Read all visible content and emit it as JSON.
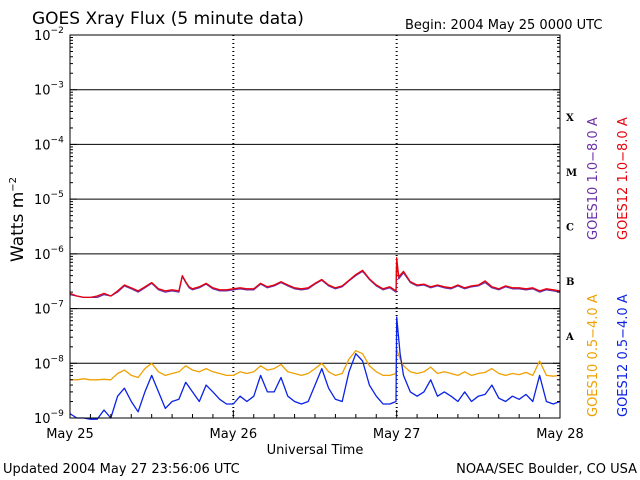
{
  "header": {
    "title": "GOES Xray Flux (5 minute data)",
    "begin": "Begin:  2004 May 25 0000 UTC"
  },
  "footer": {
    "updated": "Updated 2004 May 27 23:56:06 UTC",
    "credit": "NOAA/SEC Boulder, CO USA"
  },
  "colors": {
    "goes10_long": "#6a2fa8",
    "goes12_long": "#e8000b",
    "goes10_short": "#f0a000",
    "goes12_short": "#0a22e6"
  },
  "chart_data": {
    "type": "line",
    "title": "GOES Xray Flux (5 minute data)",
    "xlabel": "Universal Time",
    "ylabel": "Watts m-2",
    "ylabel_base": "Watts m",
    "ylabel_sup": "−2",
    "yscale": "log",
    "ylim": [
      1e-09,
      0.01
    ],
    "y_ticks": [
      {
        "value": 0.01,
        "base": "10",
        "exp": "−2"
      },
      {
        "value": 0.001,
        "base": "10",
        "exp": "−3"
      },
      {
        "value": 0.0001,
        "base": "10",
        "exp": "−4"
      },
      {
        "value": 1e-05,
        "base": "10",
        "exp": "−5"
      },
      {
        "value": 1e-06,
        "base": "10",
        "exp": "−6"
      },
      {
        "value": 1e-07,
        "base": "10",
        "exp": "−7"
      },
      {
        "value": 1e-08,
        "base": "10",
        "exp": "−8"
      },
      {
        "value": 1e-09,
        "base": "10",
        "exp": "−9"
      }
    ],
    "x_unit": "hours from 2004 May 25 0000 UTC",
    "xlim": [
      0,
      72
    ],
    "x_ticks": [
      {
        "value": 0,
        "label": "May 25"
      },
      {
        "value": 24,
        "label": "May 26"
      },
      {
        "value": 48,
        "label": "May 27"
      },
      {
        "value": 72,
        "label": "May 28"
      }
    ],
    "flare_classes": [
      {
        "label": "X",
        "low": 0.0001,
        "high": 0.001
      },
      {
        "label": "M",
        "low": 1e-05,
        "high": 0.0001
      },
      {
        "label": "C",
        "low": 1e-06,
        "high": 1e-05
      },
      {
        "label": "B",
        "low": 1e-07,
        "high": 1e-06
      },
      {
        "label": "A",
        "low": 1e-08,
        "high": 1e-07
      }
    ],
    "grid": true,
    "series": [
      {
        "name": "GOES10 1.0-8.0 A",
        "legend": "GOES10 1.0−8.0 A",
        "group": "long",
        "color": "#6a2fa8",
        "x": [
          0,
          1,
          2,
          3,
          4,
          5,
          6,
          7,
          8,
          9,
          10,
          11,
          12,
          13,
          14,
          15,
          16,
          16.5,
          17,
          17.5,
          18,
          19,
          20,
          21,
          22,
          23,
          24,
          25,
          26,
          27,
          28,
          29,
          30,
          31,
          32,
          33,
          34,
          35,
          36,
          37,
          38,
          39,
          40,
          41,
          42,
          43,
          44,
          45,
          46,
          47,
          47.9,
          48,
          48.3,
          49,
          50,
          51,
          52,
          53,
          54,
          55,
          56,
          57,
          58,
          59,
          60,
          61,
          62,
          63,
          64,
          65,
          66,
          67,
          68,
          69,
          70,
          71,
          72
        ],
        "y": [
          1.8e-07,
          1.7e-07,
          1.6e-07,
          1.6e-07,
          1.6e-07,
          1.8e-07,
          1.7e-07,
          2e-07,
          2.6e-07,
          2.3e-07,
          2e-07,
          2.4e-07,
          2.9e-07,
          2.2e-07,
          2e-07,
          2.1e-07,
          2e-07,
          3.9e-07,
          3e-07,
          2.4e-07,
          2.2e-07,
          2.4e-07,
          2.8e-07,
          2.3e-07,
          2.1e-07,
          2.1e-07,
          2.2e-07,
          2.3e-07,
          2.2e-07,
          2.2e-07,
          2.8e-07,
          2.4e-07,
          2.6e-07,
          3e-07,
          2.6e-07,
          2.3e-07,
          2.2e-07,
          2.3e-07,
          2.8e-07,
          3.3e-07,
          2.6e-07,
          2.3e-07,
          2.5e-07,
          3.2e-07,
          4e-07,
          4.8e-07,
          3.4e-07,
          2.6e-07,
          2.2e-07,
          2.4e-07,
          2e-07,
          7.5e-07,
          3.5e-07,
          4.5e-07,
          3e-07,
          2.6e-07,
          2.7e-07,
          2.4e-07,
          2.6e-07,
          2.4e-07,
          2.3e-07,
          2.6e-07,
          2.3e-07,
          2.5e-07,
          2.6e-07,
          3e-07,
          2.4e-07,
          2.2e-07,
          2.5e-07,
          2.3e-07,
          2.3e-07,
          2.2e-07,
          2.3e-07,
          2e-07,
          2.2e-07,
          2.1e-07,
          2e-07
        ]
      },
      {
        "name": "GOES12 1.0-8.0 A",
        "legend": "GOES12 1.0−8.0 A",
        "group": "long",
        "color": "#e8000b",
        "x": [
          0,
          1,
          2,
          3,
          4,
          5,
          6,
          7,
          8,
          9,
          10,
          11,
          12,
          13,
          14,
          15,
          16,
          16.5,
          17,
          17.5,
          18,
          19,
          20,
          21,
          22,
          23,
          24,
          25,
          26,
          27,
          28,
          29,
          30,
          31,
          32,
          33,
          34,
          35,
          36,
          37,
          38,
          39,
          40,
          41,
          42,
          43,
          44,
          45,
          46,
          47,
          47.9,
          48,
          48.3,
          49,
          50,
          51,
          52,
          53,
          54,
          55,
          56,
          57,
          58,
          59,
          60,
          61,
          62,
          63,
          64,
          65,
          66,
          67,
          68,
          69,
          70,
          71,
          72
        ],
        "y": [
          1.9e-07,
          1.7e-07,
          1.6e-07,
          1.6e-07,
          1.7e-07,
          1.9e-07,
          1.7e-07,
          2.1e-07,
          2.7e-07,
          2.4e-07,
          2.1e-07,
          2.5e-07,
          3e-07,
          2.3e-07,
          2.1e-07,
          2.2e-07,
          2.1e-07,
          4e-07,
          3.1e-07,
          2.5e-07,
          2.3e-07,
          2.5e-07,
          2.9e-07,
          2.4e-07,
          2.2e-07,
          2.2e-07,
          2.3e-07,
          2.4e-07,
          2.3e-07,
          2.3e-07,
          2.9e-07,
          2.5e-07,
          2.7e-07,
          3.1e-07,
          2.7e-07,
          2.4e-07,
          2.3e-07,
          2.4e-07,
          2.9e-07,
          3.4e-07,
          2.7e-07,
          2.4e-07,
          2.6e-07,
          3.3e-07,
          4.2e-07,
          5e-07,
          3.5e-07,
          2.7e-07,
          2.3e-07,
          2.5e-07,
          2.1e-07,
          8.5e-07,
          3.8e-07,
          4.8e-07,
          3.1e-07,
          2.7e-07,
          2.8e-07,
          2.5e-07,
          2.7e-07,
          2.5e-07,
          2.4e-07,
          2.7e-07,
          2.4e-07,
          2.6e-07,
          2.7e-07,
          3.2e-07,
          2.5e-07,
          2.3e-07,
          2.6e-07,
          2.4e-07,
          2.4e-07,
          2.3e-07,
          2.4e-07,
          2.1e-07,
          2.3e-07,
          2.2e-07,
          2.1e-07
        ]
      },
      {
        "name": "GOES10 0.5-4.0 A",
        "legend": "GOES10 0.5−4.0 A",
        "group": "short",
        "color": "#f0a000",
        "x": [
          0,
          1,
          2,
          3,
          4,
          5,
          6,
          7,
          8,
          9,
          10,
          11,
          12,
          13,
          14,
          15,
          16,
          17,
          18,
          19,
          20,
          21,
          22,
          23,
          24,
          25,
          26,
          27,
          28,
          29,
          30,
          31,
          32,
          33,
          34,
          35,
          36,
          37,
          38,
          39,
          40,
          41,
          42,
          43,
          44,
          45,
          46,
          47,
          47.9,
          48,
          48.5,
          49,
          50,
          51,
          52,
          53,
          54,
          55,
          56,
          57,
          58,
          59,
          60,
          61,
          62,
          63,
          64,
          65,
          66,
          67,
          68,
          69,
          70,
          71,
          72
        ],
        "y": [
          5e-09,
          5e-09,
          5.2e-09,
          5e-09,
          5e-09,
          5.1e-09,
          5e-09,
          6.5e-09,
          7.5e-09,
          6e-09,
          5.5e-09,
          8e-09,
          1e-08,
          7e-09,
          6e-09,
          6.5e-09,
          7e-09,
          9e-09,
          7.5e-09,
          7e-09,
          8e-09,
          7e-09,
          6.5e-09,
          6e-09,
          6e-09,
          7e-09,
          6.5e-09,
          7e-09,
          9e-09,
          7.5e-09,
          8e-09,
          9.5e-09,
          7e-09,
          6.5e-09,
          6e-09,
          6.5e-09,
          8e-09,
          1e-08,
          7e-09,
          6e-09,
          6.5e-09,
          1.2e-08,
          1.7e-08,
          1.5e-08,
          9e-09,
          7e-09,
          6e-09,
          6e-09,
          6.5e-09,
          1.8e-08,
          1.2e-08,
          9e-09,
          7e-09,
          6.5e-09,
          7e-09,
          8.5e-09,
          6.5e-09,
          7e-09,
          6.5e-09,
          6e-09,
          7e-09,
          6e-09,
          6.5e-09,
          6.8e-09,
          8e-09,
          6.5e-09,
          6e-09,
          6.5e-09,
          6.2e-09,
          6.8e-09,
          6e-09,
          1.1e-08,
          6e-09,
          5.8e-09,
          6e-09
        ]
      },
      {
        "name": "GOES12 0.5-4.0 A",
        "legend": "GOES12 0.5−4.0 A",
        "group": "short",
        "color": "#0a22e6",
        "x": [
          0,
          1,
          2,
          3,
          4,
          5,
          6,
          7,
          8,
          9,
          10,
          11,
          12,
          13,
          14,
          15,
          16,
          17,
          18,
          19,
          20,
          21,
          22,
          23,
          24,
          25,
          26,
          27,
          28,
          29,
          30,
          31,
          32,
          33,
          34,
          35,
          36,
          37,
          38,
          39,
          40,
          41,
          42,
          43,
          44,
          45,
          46,
          47,
          47.9,
          48,
          48.5,
          49,
          50,
          51,
          52,
          53,
          54,
          55,
          56,
          57,
          58,
          59,
          60,
          61,
          62,
          63,
          64,
          65,
          66,
          67,
          68,
          69,
          70,
          71,
          72
        ],
        "y": [
          1.2e-09,
          1e-09,
          1e-09,
          9.5e-10,
          9.5e-10,
          1.4e-09,
          1e-09,
          2.5e-09,
          3.5e-09,
          2e-09,
          1.3e-09,
          3e-09,
          6e-09,
          3e-09,
          1.5e-09,
          2e-09,
          2.2e-09,
          4.5e-09,
          3e-09,
          2e-09,
          4e-09,
          3e-09,
          2.2e-09,
          1.8e-09,
          1.8e-09,
          2.5e-09,
          2e-09,
          2.5e-09,
          6e-09,
          3e-09,
          3e-09,
          5.5e-09,
          2.5e-09,
          2e-09,
          1.8e-09,
          2e-09,
          4e-09,
          8e-09,
          3.5e-09,
          2.2e-09,
          2e-09,
          7e-09,
          1.5e-08,
          1.1e-08,
          4e-09,
          2.5e-09,
          1.8e-09,
          1.8e-09,
          2e-09,
          7e-08,
          1.5e-08,
          6e-09,
          3e-09,
          2.5e-09,
          3e-09,
          5e-09,
          2.5e-09,
          3e-09,
          2.5e-09,
          2e-09,
          3e-09,
          2e-09,
          2.5e-09,
          2.7e-09,
          4e-09,
          2.3e-09,
          2e-09,
          2.5e-09,
          2.2e-09,
          2.7e-09,
          2e-09,
          6e-09,
          2e-09,
          1.8e-09,
          2e-09
        ]
      }
    ]
  }
}
